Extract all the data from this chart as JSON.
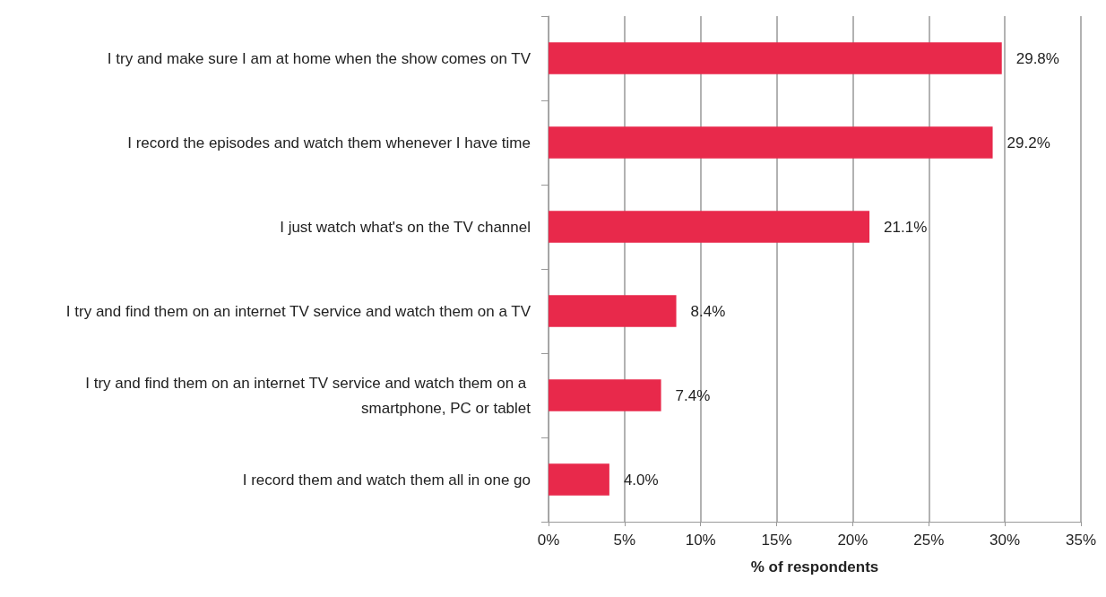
{
  "chart_data": {
    "type": "bar",
    "orientation": "horizontal",
    "categories": [
      "I try and make sure I am at home when the show comes on TV",
      "I record the episodes and watch them whenever I have time",
      "I just watch what's on the TV channel",
      "I try and find them on an internet TV service and watch them on a TV",
      "I try and find them on an internet TV service and watch them on a smartphone, PC or tablet",
      "I record them and watch them all in one go"
    ],
    "values": [
      29.8,
      29.2,
      21.1,
      8.4,
      7.4,
      4.0
    ],
    "value_labels": [
      "29.8%",
      "29.2%",
      "21.1%",
      "8.4%",
      "7.4%",
      "4.0%"
    ],
    "color": "#e8294b",
    "xlabel": "% of respondents",
    "xlim": [
      0,
      35
    ],
    "xticks": [
      {
        "value": 0,
        "label": "0%"
      },
      {
        "value": 5,
        "label": "5%"
      },
      {
        "value": 10,
        "label": "10%"
      },
      {
        "value": 15,
        "label": "15%"
      },
      {
        "value": 20,
        "label": "20%"
      },
      {
        "value": 25,
        "label": "25%"
      },
      {
        "value": 30,
        "label": "30%"
      },
      {
        "value": 35,
        "label": "35%"
      }
    ],
    "grid": "x"
  }
}
